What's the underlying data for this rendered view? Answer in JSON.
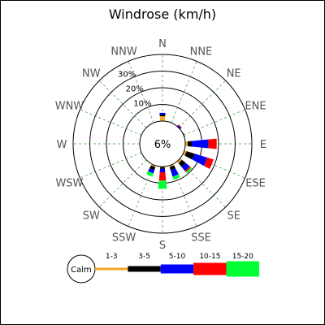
{
  "chart_data": {
    "type": "windrose",
    "title": "Windrose (km/h)",
    "directions": [
      "N",
      "NNE",
      "NE",
      "ENE",
      "E",
      "ESE",
      "SE",
      "SSE",
      "S",
      "SSW",
      "SW",
      "WSW",
      "W",
      "WNW",
      "NW",
      "NNW"
    ],
    "calm_label": "6%",
    "radial_ticks": [
      {
        "value": 10,
        "label": "10%"
      },
      {
        "value": 20,
        "label": "20%"
      },
      {
        "value": 30,
        "label": "30%"
      }
    ],
    "rmax": 40,
    "series": [
      {
        "name": "1-3",
        "color": "#f5a623",
        "values": [
          3,
          0,
          0,
          0,
          1.5,
          1.5,
          1.5,
          1,
          0.5,
          1,
          0,
          0,
          0,
          0,
          0,
          0
        ]
      },
      {
        "name": "3-5",
        "color": "#000000",
        "values": [
          1,
          0,
          0,
          0.5,
          2.5,
          5,
          3,
          2,
          1,
          2,
          0,
          0,
          0,
          0,
          0,
          0
        ]
      },
      {
        "name": "5-10",
        "color": "#0000ff",
        "values": [
          1,
          0,
          1,
          0,
          10,
          8,
          3,
          4,
          2,
          2,
          0,
          0,
          0,
          0,
          0,
          0
        ]
      },
      {
        "name": "10-15",
        "color": "#ff0000",
        "values": [
          0,
          0,
          0.5,
          0,
          5,
          4,
          1,
          0,
          5,
          0,
          0,
          0,
          0,
          0,
          0,
          0
        ]
      },
      {
        "name": "15-20",
        "color": "#00ff33",
        "values": [
          0,
          0,
          0,
          0,
          0,
          0,
          1,
          2,
          5,
          2,
          0,
          0,
          0,
          0,
          0,
          0
        ]
      }
    ],
    "legend": {
      "calm_label": "Calm",
      "position": "bottom"
    }
  }
}
